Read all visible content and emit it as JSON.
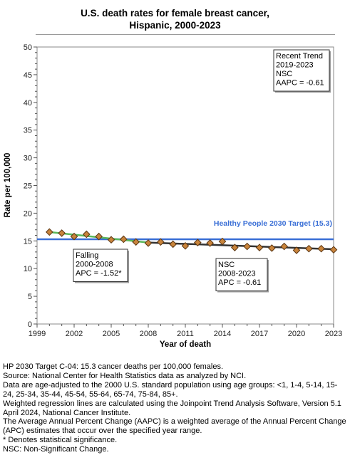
{
  "chart_data": {
    "type": "line",
    "title_line1": "U.S. death rates for female breast cancer,",
    "title_line2": "Hispanic,  2000-2023",
    "xlabel": "Year of death",
    "ylabel": "Rate per 100,000",
    "xlim": [
      1999,
      2023
    ],
    "ylim": [
      0,
      50
    ],
    "x_ticks": [
      1999,
      2002,
      2005,
      2008,
      2011,
      2014,
      2017,
      2020,
      2023
    ],
    "y_ticks": [
      0,
      5,
      10,
      15,
      20,
      25,
      30,
      35,
      40,
      45,
      50
    ],
    "grid": false,
    "observed": {
      "x": [
        2000,
        2001,
        2002,
        2003,
        2004,
        2005,
        2006,
        2007,
        2008,
        2009,
        2010,
        2011,
        2012,
        2013,
        2014,
        2015,
        2016,
        2017,
        2018,
        2019,
        2020,
        2021,
        2022,
        2023
      ],
      "y": [
        16.6,
        16.4,
        15.8,
        16.2,
        15.8,
        15.2,
        15.3,
        14.8,
        14.6,
        14.8,
        14.4,
        14.1,
        14.7,
        14.6,
        14.9,
        13.8,
        14.0,
        13.8,
        13.7,
        14.0,
        13.3,
        13.6,
        13.6,
        13.4
      ]
    },
    "trend_segments": [
      {
        "x": [
          2000,
          2008
        ],
        "y": [
          16.6,
          14.7
        ],
        "color": "#5bb85b"
      },
      {
        "x": [
          2008,
          2023
        ],
        "y": [
          14.7,
          13.5
        ],
        "color": "#333333"
      }
    ],
    "target": {
      "value": 15.3,
      "label": "Healthy People 2030 Target (15.3)",
      "color": "#3a6fd6"
    },
    "annotations": [
      {
        "lines": [
          "Recent Trend",
          "2019-2023",
          "NSC",
          "AAPC = -0.61"
        ],
        "anchor": "top-right"
      },
      {
        "lines": [
          "Falling",
          "2000-2008",
          "APC = -1.52*"
        ],
        "anchor": "falling-segment"
      },
      {
        "lines": [
          "NSC",
          "2008-2023",
          "APC = -0.61"
        ],
        "anchor": "nsc-segment"
      }
    ],
    "colors": {
      "marker_fill": "#c8843c",
      "marker_stroke": "#5a3410"
    }
  },
  "footnotes": [
    "HP 2030 Target C-04: 15.3 cancer deaths per 100,000 females.",
    "Source: National Center for Health Statistics data as analyzed by NCI.",
    "Data are age-adjusted to the 2000 U.S. standard population using age groups: <1, 1-4, 5-14, 15-24, 25-34, 35-44, 45-54, 55-64, 65-74, 75-84, 85+.",
    "Weighted regression lines are calculated using the Joinpoint Trend Analysis Software, Version 5.1 April 2024, National Cancer Institute.",
    "The Average Annual Percent Change (AAPC) is a weighted average of the Annual Percent Change (APC) estimates that occur over the specified year range.",
    "* Denotes statistical significance.",
    "NSC: Non-Significant Change."
  ]
}
